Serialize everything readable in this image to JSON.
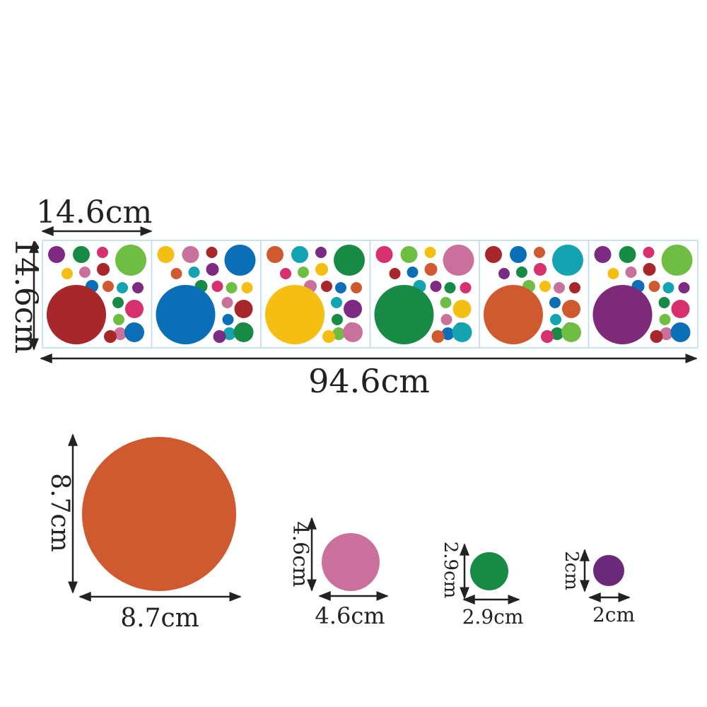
{
  "strip": {
    "width_label": "94.6cm",
    "height_label": "14.6cm",
    "panel_width_label": "14.6cm",
    "panel_count": 6,
    "big_dot_colors": [
      "#a8272a",
      "#0b6fb7",
      "#f4be12",
      "#178a45",
      "#cf5a30",
      "#7e2a7a"
    ]
  },
  "dot_samples": [
    {
      "size_label": "8.7cm",
      "height_label": "8.7cm",
      "color": "#cf5a30"
    },
    {
      "size_label": "4.6cm",
      "height_label": "4.6cm",
      "color": "#c9709c"
    },
    {
      "size_label": "2.9cm",
      "height_label": "2.9cm",
      "color": "#178a45"
    },
    {
      "size_label": "2cm",
      "height_label": "2cm",
      "color": "#6a2a79"
    }
  ],
  "palette": [
    "#7c2a82",
    "#0b6fb7",
    "#f4be12",
    "#178a45",
    "#cf5a30",
    "#c9709c",
    "#d6306e",
    "#14a3b0",
    "#a8272a",
    "#6fbe44"
  ]
}
